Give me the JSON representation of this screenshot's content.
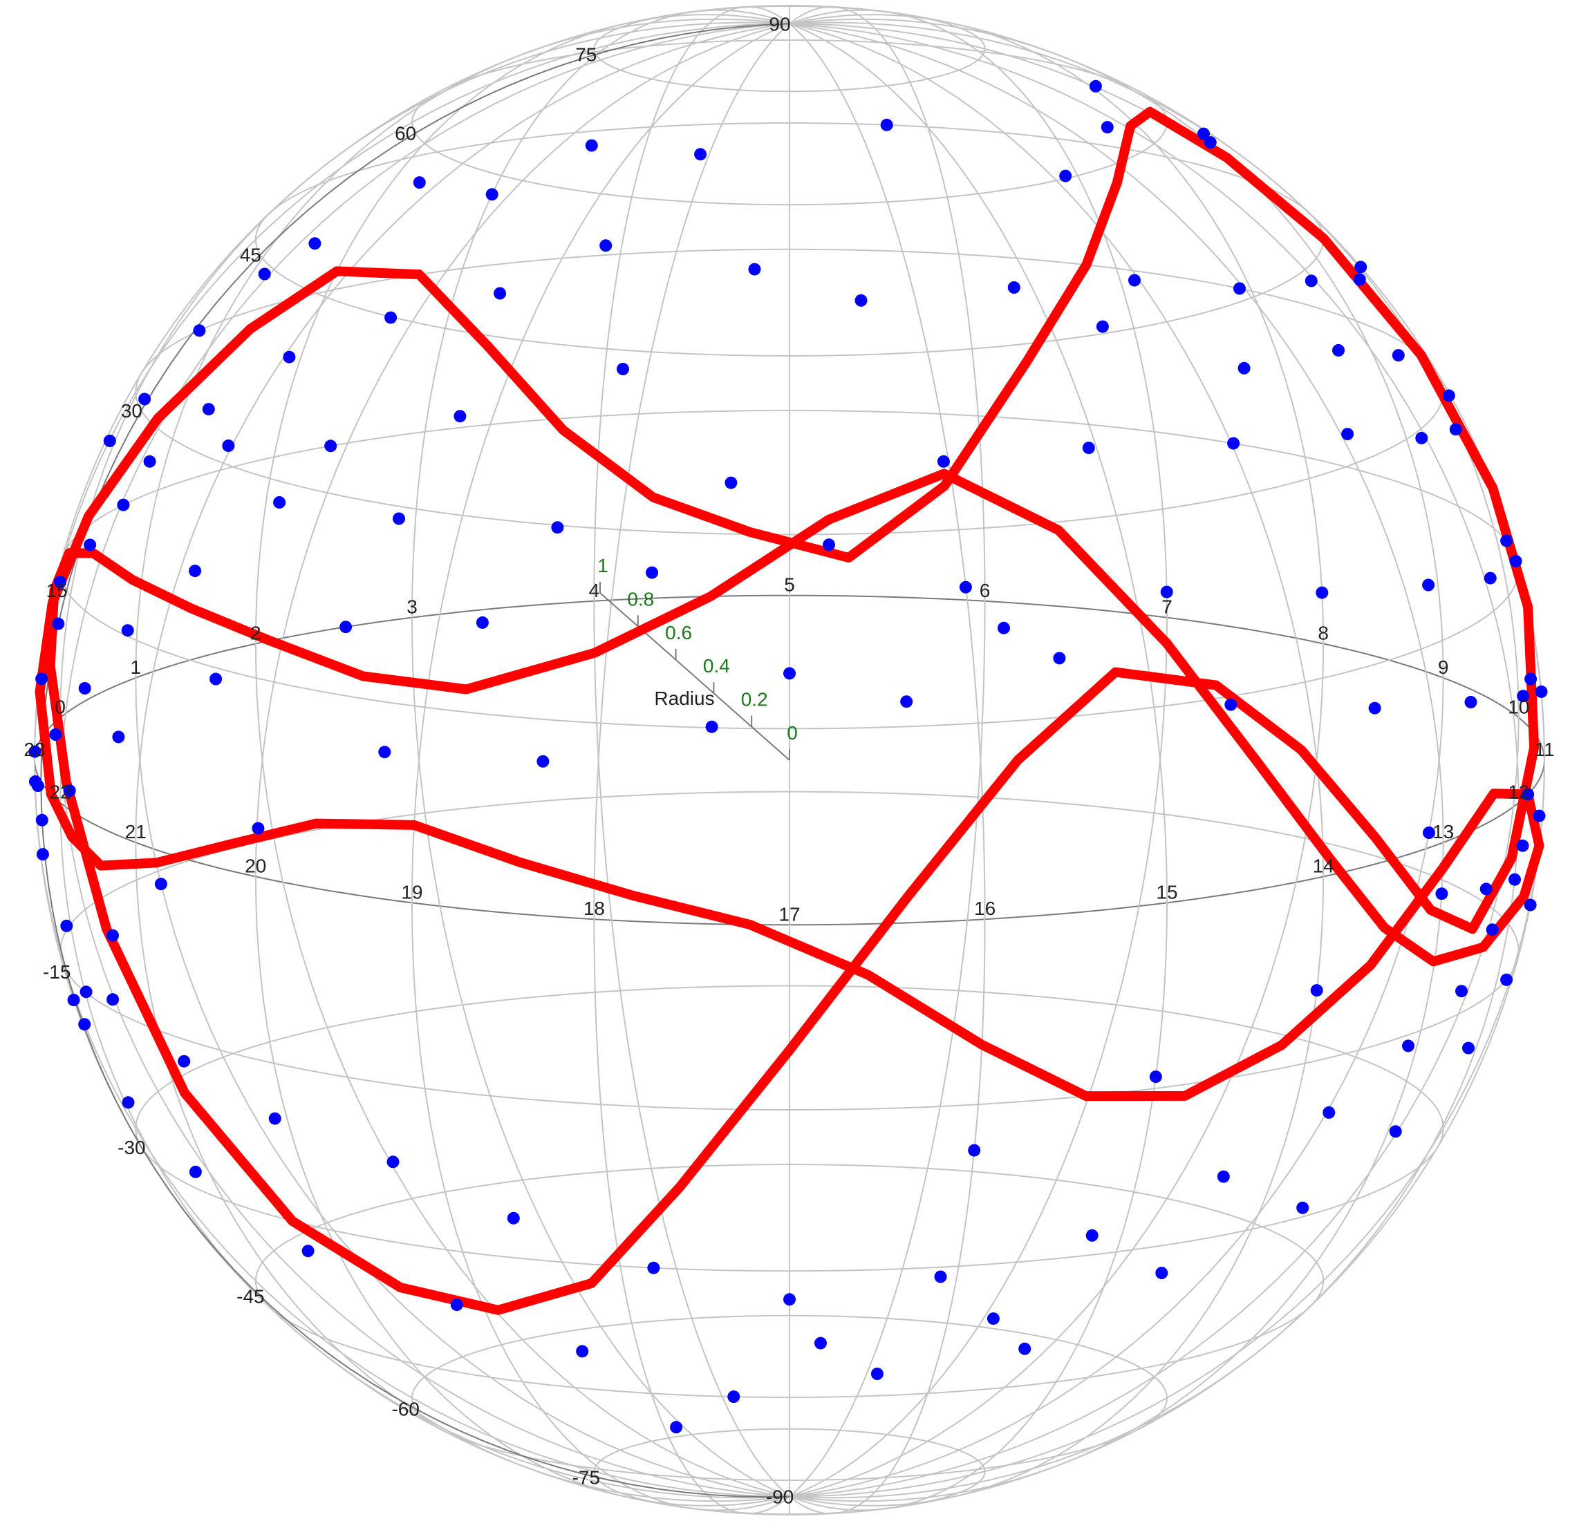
{
  "colors": {
    "points": "#0000ff",
    "curve": "#ff0000",
    "grid": "#c4c4c4",
    "equator": "#7a7a7a",
    "radius_ticks": "#1a7a1a",
    "text": "#222222",
    "background": "#ffffff"
  },
  "chart_data": {
    "type": "scatter",
    "projection": "orthographic-sphere",
    "title": "",
    "xlabel": "",
    "ylabel": "",
    "grid": true,
    "ra_axis": {
      "unit": "hours",
      "tick_labels": [
        "0",
        "1",
        "2",
        "3",
        "4",
        "5",
        "6",
        "7",
        "8",
        "9",
        "10",
        "11",
        "12",
        "13",
        "14",
        "15",
        "16",
        "17",
        "18",
        "19",
        "20",
        "21",
        "22",
        "23"
      ]
    },
    "dec_axis": {
      "unit": "degrees",
      "tick_labels": [
        "90",
        "75",
        "60",
        "45",
        "30",
        "15",
        "-15",
        "-30",
        "-45",
        "-60",
        "-75",
        "-90"
      ]
    },
    "radius_axis": {
      "label": "Radius",
      "range": [
        0,
        1
      ],
      "tick_labels": [
        "0",
        "0.2",
        "0.4",
        "0.6",
        "0.8",
        "1"
      ]
    },
    "series": [
      {
        "kind": "points",
        "ra_dec": [
          [
            10.7,
            56
          ],
          [
            9.2,
            52
          ],
          [
            8.1,
            56
          ],
          [
            7.6,
            48
          ],
          [
            6.9,
            40
          ],
          [
            5.7,
            45
          ],
          [
            4.4,
            41
          ],
          [
            3.6,
            43
          ],
          [
            3.0,
            38
          ],
          [
            2.3,
            41
          ],
          [
            1.6,
            36
          ],
          [
            1.2,
            34
          ],
          [
            0.7,
            30
          ],
          [
            0.3,
            25
          ],
          [
            23.8,
            23
          ],
          [
            10.4,
            40
          ],
          [
            9.6,
            36
          ],
          [
            8.7,
            33
          ],
          [
            7.9,
            30
          ],
          [
            7.1,
            29
          ],
          [
            6.3,
            27
          ],
          [
            5.4,
            25
          ],
          [
            4.8,
            28
          ],
          [
            3.9,
            31
          ],
          [
            3.3,
            27
          ],
          [
            2.6,
            26
          ],
          [
            1.9,
            24
          ],
          [
            1.3,
            21
          ],
          [
            0.8,
            18
          ],
          [
            0.2,
            13
          ],
          [
            23.6,
            12
          ],
          [
            10.8,
            29
          ],
          [
            9.9,
            23
          ],
          [
            9.2,
            20
          ],
          [
            8.4,
            18
          ],
          [
            7.5,
            15
          ],
          [
            6.6,
            13
          ],
          [
            5.8,
            11
          ],
          [
            4.7,
            9
          ],
          [
            3.8,
            6
          ],
          [
            2.9,
            8
          ],
          [
            2.1,
            11
          ],
          [
            1.5,
            7
          ],
          [
            0.9,
            4
          ],
          [
            0.4,
            1
          ],
          [
            23.9,
            -1
          ],
          [
            23.3,
            -3
          ],
          [
            11.2,
            18
          ],
          [
            10.5,
            14
          ],
          [
            9.7,
            10
          ],
          [
            8.9,
            7
          ],
          [
            8.0,
            4
          ],
          [
            7.0,
            2
          ],
          [
            5.9,
            1
          ],
          [
            5.2,
            4
          ],
          [
            4.3,
            2
          ],
          [
            3.4,
            -1
          ],
          [
            2.6,
            0
          ],
          [
            1.7,
            -2
          ],
          [
            0.8,
            -4
          ],
          [
            0.1,
            -6
          ],
          [
            11.5,
            8
          ],
          [
            10.9,
            5
          ],
          [
            10.1,
            2
          ],
          [
            9.3,
            -1
          ],
          [
            8.4,
            -4
          ],
          [
            7.4,
            -6
          ],
          [
            6.4,
            -4
          ],
          [
            5.6,
            -8
          ],
          [
            4.6,
            -10
          ],
          [
            3.7,
            -12
          ],
          [
            2.8,
            -10
          ],
          [
            1.9,
            -14
          ],
          [
            1.0,
            -16
          ],
          [
            0.3,
            -18
          ],
          [
            23.5,
            -20
          ],
          [
            22.7,
            -18
          ],
          [
            11.8,
            0
          ],
          [
            11.4,
            -3
          ],
          [
            12.0,
            -6
          ],
          [
            12.3,
            -9
          ],
          [
            12.6,
            -13
          ],
          [
            13.1,
            -16
          ],
          [
            13.7,
            -20
          ],
          [
            14.4,
            -24
          ],
          [
            15.2,
            -28
          ],
          [
            16.1,
            -31
          ],
          [
            17.0,
            -33
          ],
          [
            17.8,
            -30
          ],
          [
            18.6,
            -26
          ],
          [
            19.3,
            -22
          ],
          [
            20.1,
            -20
          ],
          [
            20.8,
            -17
          ],
          [
            21.5,
            -14
          ],
          [
            22.1,
            -10
          ],
          [
            22.6,
            -6
          ],
          [
            23.1,
            -2
          ],
          [
            13.0,
            -4
          ],
          [
            14.0,
            -9
          ],
          [
            15.0,
            -14
          ],
          [
            16.0,
            -19
          ],
          [
            16.8,
            -38
          ],
          [
            15.7,
            -36
          ],
          [
            14.6,
            -33
          ],
          [
            13.6,
            -29
          ],
          [
            12.9,
            -24
          ],
          [
            18.4,
            -40
          ],
          [
            19.2,
            -36
          ],
          [
            20.3,
            -33
          ],
          [
            21.2,
            -28
          ],
          [
            21.9,
            -24
          ],
          [
            22.4,
            -19
          ],
          [
            17.4,
            -45
          ],
          [
            17.9,
            -50
          ],
          [
            16.4,
            -42
          ],
          [
            15.4,
            -40
          ],
          [
            6.8,
            24
          ],
          [
            7.7,
            22
          ],
          [
            8.6,
            26
          ],
          [
            9.4,
            28
          ],
          [
            4.1,
            19
          ],
          [
            3.2,
            16
          ],
          [
            2.4,
            15
          ],
          [
            1.6,
            17
          ],
          [
            0.6,
            15
          ],
          [
            23.8,
            8
          ],
          [
            23.4,
            5
          ],
          [
            22.9,
            1
          ],
          [
            22.5,
            -3
          ],
          [
            10.3,
            -9
          ],
          [
            11.1,
            -11
          ],
          [
            11.7,
            -15
          ],
          [
            12.2,
            -19
          ],
          [
            9.8,
            -14
          ],
          [
            9.0,
            -12
          ],
          [
            6.1,
            -2
          ],
          [
            5.0,
            -6
          ]
        ]
      },
      {
        "kind": "curve",
        "ra_dec": [
          [
            22.2,
            0
          ],
          [
            22.8,
            6
          ],
          [
            23.4,
            11
          ],
          [
            0.0,
            16
          ],
          [
            0.7,
            22
          ],
          [
            1.4,
            28
          ],
          [
            2.0,
            32
          ],
          [
            2.7,
            30
          ],
          [
            3.3,
            22
          ],
          [
            3.8,
            14
          ],
          [
            4.3,
            8
          ],
          [
            4.8,
            5
          ],
          [
            5.3,
            3
          ],
          [
            5.8,
            9
          ],
          [
            6.3,
            20
          ],
          [
            6.8,
            30
          ],
          [
            7.3,
            40
          ],
          [
            7.9,
            49
          ],
          [
            8.5,
            53
          ],
          [
            9.0,
            48
          ],
          [
            9.5,
            40
          ],
          [
            10.0,
            30
          ],
          [
            10.5,
            20
          ],
          [
            11.0,
            12
          ],
          [
            11.6,
            3
          ],
          [
            12.1,
            -4
          ],
          [
            12.6,
            -8
          ],
          [
            13.1,
            -5
          ],
          [
            13.6,
            2
          ],
          [
            14.1,
            10
          ],
          [
            14.6,
            16
          ],
          [
            15.2,
            18
          ],
          [
            15.8,
            12
          ],
          [
            16.4,
            2
          ],
          [
            17.0,
            -10
          ],
          [
            17.6,
            -22
          ],
          [
            18.2,
            -32
          ],
          [
            18.9,
            -36
          ],
          [
            19.6,
            -35
          ],
          [
            20.3,
            -30
          ],
          [
            20.9,
            -20
          ],
          [
            21.4,
            -8
          ],
          [
            21.9,
            2
          ],
          [
            22.5,
            9
          ],
          [
            23.1,
            13
          ],
          [
            23.7,
            14
          ],
          [
            0.3,
            12
          ],
          [
            0.9,
            8
          ],
          [
            1.5,
            4
          ],
          [
            2.1,
            0
          ],
          [
            2.7,
            -4
          ],
          [
            3.3,
            -6
          ],
          [
            4.0,
            -4
          ],
          [
            4.6,
            0
          ],
          [
            5.2,
            6
          ],
          [
            5.8,
            10
          ],
          [
            6.4,
            6
          ],
          [
            7.0,
            -2
          ],
          [
            7.6,
            -10
          ],
          [
            8.2,
            -16
          ],
          [
            8.8,
            -20
          ],
          [
            9.4,
            -21
          ],
          [
            10.0,
            -18
          ],
          [
            10.6,
            -12
          ],
          [
            11.2,
            -6
          ],
          [
            11.8,
            0
          ],
          [
            12.4,
            2
          ],
          [
            13.0,
            -2
          ],
          [
            13.6,
            -8
          ],
          [
            14.2,
            -13
          ],
          [
            14.8,
            -16
          ],
          [
            15.4,
            -15
          ],
          [
            16.0,
            -10
          ],
          [
            16.6,
            -4
          ],
          [
            17.2,
            0
          ],
          [
            17.8,
            2
          ],
          [
            18.4,
            4
          ],
          [
            19.0,
            6
          ],
          [
            19.6,
            5
          ],
          [
            20.2,
            2
          ],
          [
            20.8,
            -1
          ],
          [
            21.4,
            -3
          ],
          [
            21.8,
            -2
          ],
          [
            22.2,
            0
          ]
        ]
      }
    ]
  }
}
